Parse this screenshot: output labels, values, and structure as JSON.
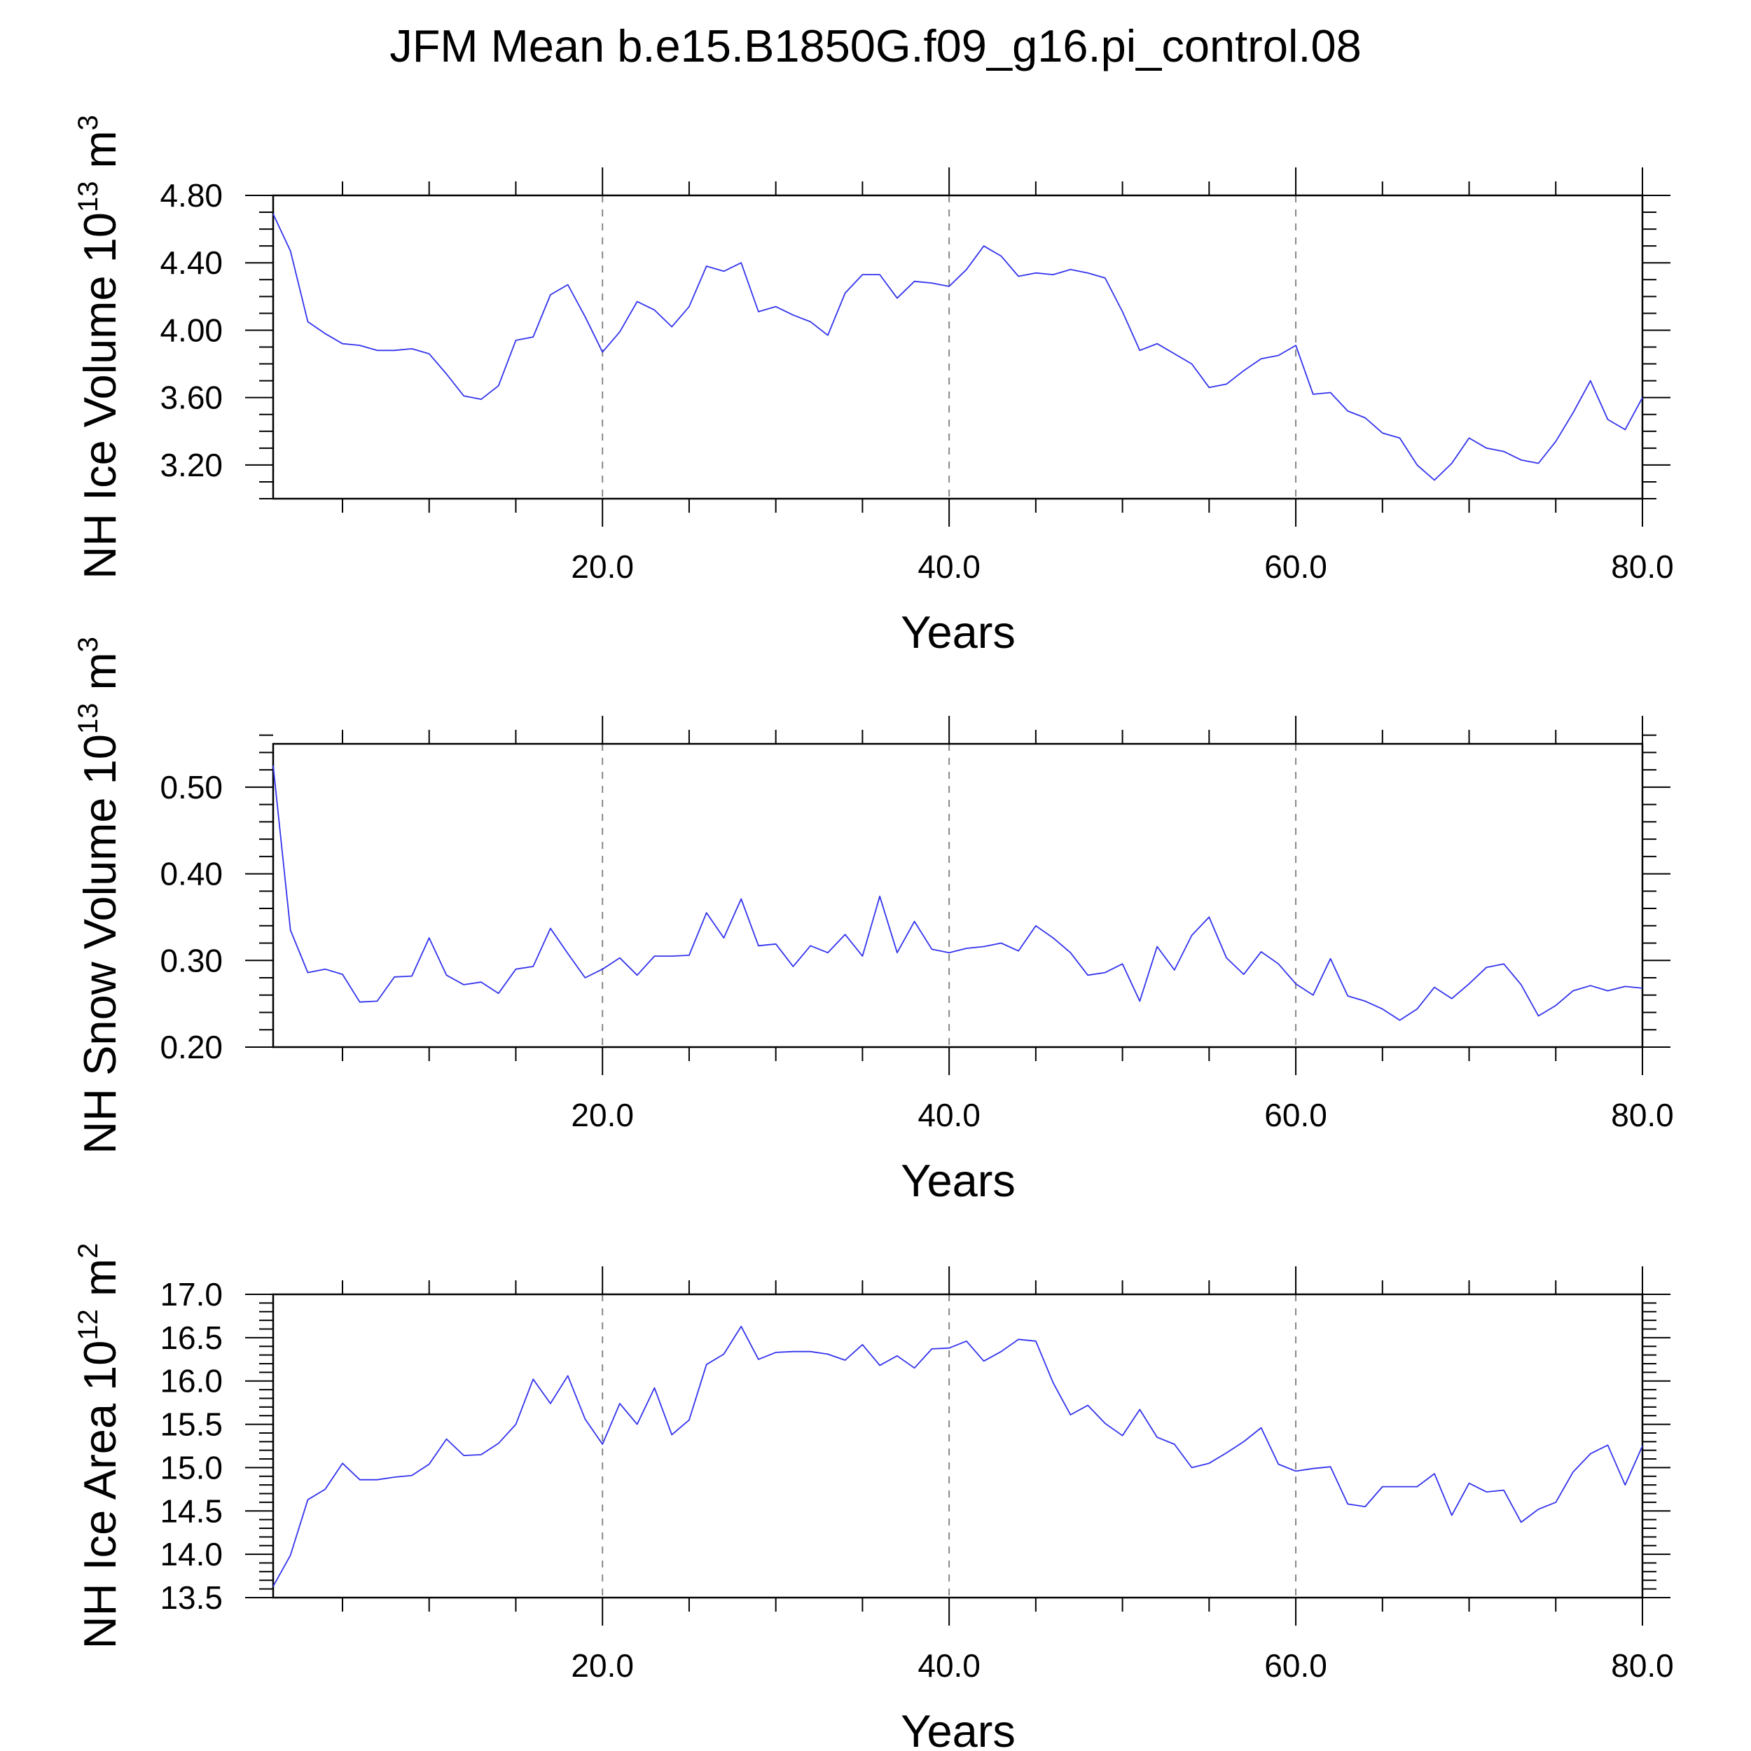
{
  "figure": {
    "title": "JFM Mean b.e15.B1850G.f09_g16.pi_control.08"
  },
  "chart_data": [
    {
      "type": "line",
      "id": "ice-volume",
      "ylabel": "NH Ice Volume",
      "yunit": {
        "base": "10",
        "exp": "13",
        "unit": "m",
        "unit_exp": "3"
      },
      "xlabel": "Years",
      "xlim": [
        1,
        80
      ],
      "ylim": [
        3.0,
        4.8
      ],
      "xticks": [
        20,
        40,
        60,
        80
      ],
      "xtick_labels": [
        "20.0",
        "40.0",
        "60.0",
        "80.0"
      ],
      "yticks": [
        3.2,
        3.6,
        4.0,
        4.4,
        4.8
      ],
      "ytick_labels": [
        "3.20",
        "3.60",
        "4.00",
        "4.40",
        "4.80"
      ],
      "yminor": 0.1,
      "grid_x": "dashed at major x ticks",
      "line_color": "#3333ee",
      "x_start": 1,
      "values": [
        4.69,
        4.47,
        4.05,
        3.98,
        3.92,
        3.91,
        3.88,
        3.88,
        3.89,
        3.86,
        3.74,
        3.61,
        3.59,
        3.67,
        3.94,
        3.96,
        4.21,
        4.27,
        4.08,
        3.87,
        3.99,
        4.17,
        4.12,
        4.02,
        4.14,
        4.38,
        4.35,
        4.4,
        4.11,
        4.14,
        4.09,
        4.05,
        3.97,
        4.22,
        4.33,
        4.33,
        4.19,
        4.29,
        4.28,
        4.26,
        4.36,
        4.5,
        4.44,
        4.32,
        4.34,
        4.33,
        4.36,
        4.34,
        4.31,
        4.11,
        3.88,
        3.92,
        3.86,
        3.8,
        3.66,
        3.68,
        3.76,
        3.83,
        3.85,
        3.91,
        3.62,
        3.63,
        3.52,
        3.48,
        3.39,
        3.36,
        3.2,
        3.11,
        3.21,
        3.36,
        3.3,
        3.28,
        3.23,
        3.21,
        3.34,
        3.51,
        3.7,
        3.47,
        3.41,
        3.6
      ]
    },
    {
      "type": "line",
      "id": "snow-volume",
      "ylabel": "NH Snow Volume",
      "yunit": {
        "base": "10",
        "exp": "13",
        "unit": "m",
        "unit_exp": "3"
      },
      "xlabel": "Years",
      "xlim": [
        1,
        80
      ],
      "ylim": [
        0.2,
        0.55
      ],
      "xticks": [
        20,
        40,
        60,
        80
      ],
      "xtick_labels": [
        "20.0",
        "40.0",
        "60.0",
        "80.0"
      ],
      "yticks": [
        0.2,
        0.3,
        0.4,
        0.5
      ],
      "ytick_labels": [
        "0.20",
        "0.30",
        "0.40",
        "0.50"
      ],
      "yminor": 0.02,
      "grid_x": "dashed at major x ticks",
      "line_color": "#3333ee",
      "x_start": 1,
      "values": [
        0.525,
        0.335,
        0.286,
        0.29,
        0.284,
        0.252,
        0.253,
        0.281,
        0.282,
        0.326,
        0.283,
        0.272,
        0.275,
        0.262,
        0.29,
        0.293,
        0.337,
        0.308,
        0.28,
        0.29,
        0.303,
        0.283,
        0.305,
        0.305,
        0.306,
        0.355,
        0.326,
        0.371,
        0.317,
        0.319,
        0.293,
        0.317,
        0.309,
        0.33,
        0.305,
        0.374,
        0.309,
        0.345,
        0.313,
        0.309,
        0.314,
        0.316,
        0.32,
        0.311,
        0.34,
        0.326,
        0.309,
        0.283,
        0.286,
        0.296,
        0.253,
        0.316,
        0.289,
        0.329,
        0.35,
        0.303,
        0.284,
        0.31,
        0.296,
        0.273,
        0.26,
        0.302,
        0.259,
        0.253,
        0.244,
        0.231,
        0.244,
        0.269,
        0.256,
        0.273,
        0.292,
        0.296,
        0.272,
        0.236,
        0.248,
        0.265,
        0.271,
        0.265,
        0.27,
        0.268
      ]
    },
    {
      "type": "line",
      "id": "ice-area",
      "ylabel": "NH Ice Area",
      "yunit": {
        "base": "10",
        "exp": "12",
        "unit": "m",
        "unit_exp": "2"
      },
      "xlabel": "Years",
      "xlim": [
        1,
        80
      ],
      "ylim": [
        13.5,
        17.0
      ],
      "xticks": [
        20,
        40,
        60,
        80
      ],
      "xtick_labels": [
        "20.0",
        "40.0",
        "60.0",
        "80.0"
      ],
      "yticks": [
        13.5,
        14.0,
        14.5,
        15.0,
        15.5,
        16.0,
        16.5,
        17.0
      ],
      "ytick_labels": [
        "13.5",
        "14.0",
        "14.5",
        "15.0",
        "15.5",
        "16.0",
        "16.5",
        "17.0"
      ],
      "yminor": 0.1,
      "grid_x": "dashed at major x ticks",
      "line_color": "#3333ee",
      "x_start": 1,
      "values": [
        13.63,
        13.99,
        14.63,
        14.75,
        15.05,
        14.86,
        14.86,
        14.89,
        14.91,
        15.04,
        15.33,
        15.14,
        15.15,
        15.28,
        15.5,
        16.02,
        15.74,
        16.06,
        15.56,
        15.27,
        15.74,
        15.5,
        15.92,
        15.38,
        15.55,
        16.19,
        16.31,
        16.63,
        16.25,
        16.33,
        16.34,
        16.34,
        16.31,
        16.24,
        16.42,
        16.18,
        16.29,
        16.15,
        16.37,
        16.38,
        16.46,
        16.23,
        16.34,
        16.48,
        16.46,
        15.98,
        15.61,
        15.72,
        15.51,
        15.37,
        15.67,
        15.35,
        15.27,
        15.0,
        15.05,
        15.17,
        15.3,
        15.46,
        15.04,
        14.96,
        14.99,
        15.01,
        14.58,
        14.55,
        14.78,
        14.78,
        14.78,
        14.93,
        14.45,
        14.82,
        14.72,
        14.74,
        14.37,
        14.52,
        14.6,
        14.95,
        15.16,
        15.26,
        14.8,
        15.25
      ]
    }
  ]
}
